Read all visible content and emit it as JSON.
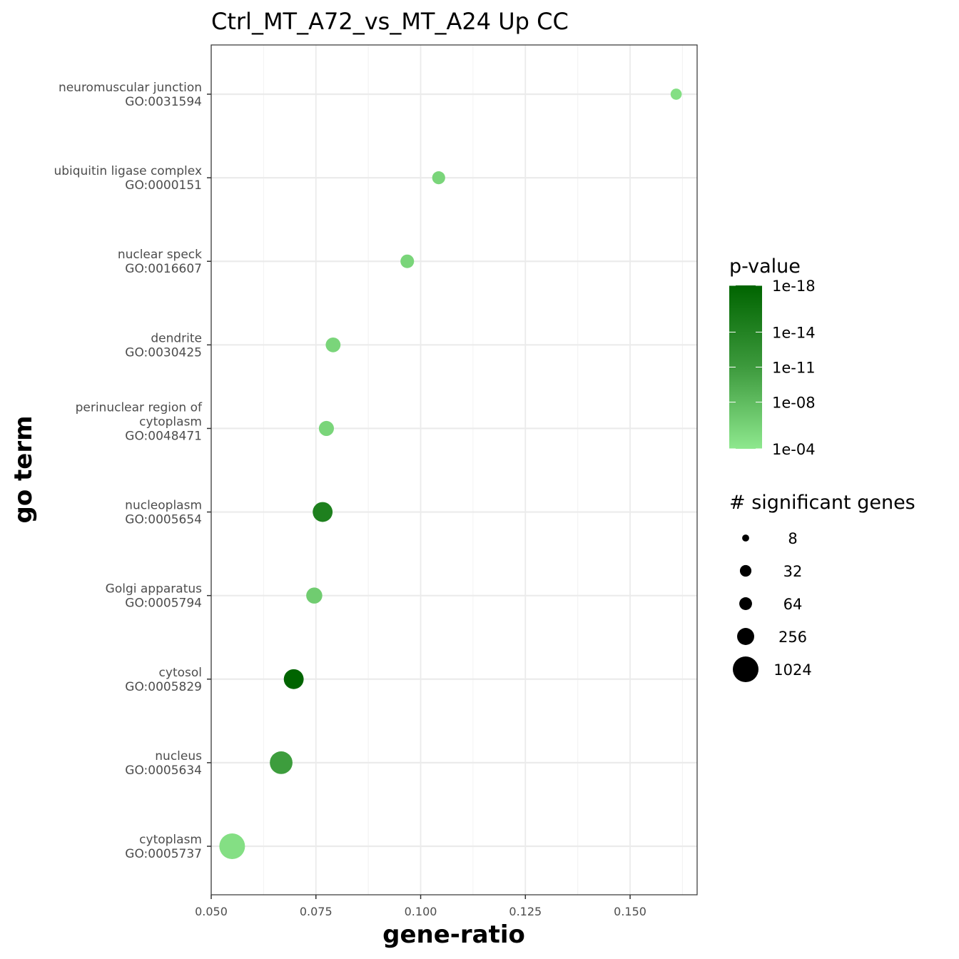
{
  "chart_data": {
    "type": "scatter",
    "title": "Ctrl_MT_A72_vs_MT_A24 Up CC",
    "xlabel": "gene-ratio",
    "ylabel": "go term",
    "xlim": [
      0.05,
      0.166
    ],
    "xticks": [
      "0.050",
      "0.075",
      "0.100",
      "0.125",
      "0.150"
    ],
    "grid": true,
    "legend_placement": "right",
    "categories": [
      {
        "name": "cytoplasm",
        "go": "GO:0005737"
      },
      {
        "name": "nucleus",
        "go": "GO:0005634"
      },
      {
        "name": "cytosol",
        "go": "GO:0005829"
      },
      {
        "name": "Golgi apparatus",
        "go": "GO:0005794"
      },
      {
        "name": "nucleoplasm",
        "go": "GO:0005654"
      },
      {
        "name": "perinuclear region of cytoplasm",
        "go": "GO:0048471"
      },
      {
        "name": "dendrite",
        "go": "GO:0030425"
      },
      {
        "name": "nuclear speck",
        "go": "GO:0016607"
      },
      {
        "name": "ubiquitin ligase complex",
        "go": "GO:0000151"
      },
      {
        "name": "neuromuscular junction",
        "go": "GO:0031594"
      }
    ],
    "points": [
      {
        "go": "GO:0005737",
        "gene_ratio": 0.055,
        "genes": 1024,
        "p_value": 1e-05
      },
      {
        "go": "GO:0005634",
        "gene_ratio": 0.0667,
        "genes": 700,
        "p_value": 1e-12
      },
      {
        "go": "GO:0005829",
        "gene_ratio": 0.0697,
        "genes": 450,
        "p_value": 1e-18
      },
      {
        "go": "GO:0005794",
        "gene_ratio": 0.0746,
        "genes": 200,
        "p_value": 1e-07
      },
      {
        "go": "GO:0005654",
        "gene_ratio": 0.0766,
        "genes": 450,
        "p_value": 1e-15
      },
      {
        "go": "GO:0048471",
        "gene_ratio": 0.0775,
        "genes": 150,
        "p_value": 1e-06
      },
      {
        "go": "GO:0030425",
        "gene_ratio": 0.0791,
        "genes": 140,
        "p_value": 1e-06
      },
      {
        "go": "GO:0016607",
        "gene_ratio": 0.0968,
        "genes": 90,
        "p_value": 1e-06
      },
      {
        "go": "GO:0000151",
        "gene_ratio": 0.1043,
        "genes": 70,
        "p_value": 1e-06
      },
      {
        "go": "GO:0031594",
        "gene_ratio": 0.161,
        "genes": 25,
        "p_value": 1e-05
      }
    ],
    "color_legend": {
      "title": "p-value",
      "labels": [
        "1e-18",
        "1e-14",
        "1e-11",
        "1e-08",
        "1e-04"
      ],
      "low_color": "#8ee88e",
      "high_color": "#006400"
    },
    "size_legend": {
      "title": "# significant  genes",
      "values": [
        8,
        32,
        64,
        256,
        1024
      ],
      "labels": [
        "8",
        "32",
        "64",
        "256",
        "1024"
      ]
    }
  }
}
